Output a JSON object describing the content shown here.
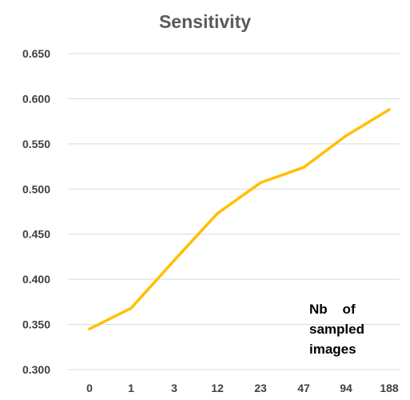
{
  "chart_data": {
    "type": "line",
    "title": "Sensitivity",
    "xlabel": "",
    "ylabel": "",
    "categories": [
      "0",
      "1",
      "3",
      "12",
      "23",
      "47",
      "94",
      "188"
    ],
    "series": [
      {
        "values": [
          0.345,
          0.368,
          0.421,
          0.473,
          0.507,
          0.524,
          0.559,
          0.588
        ],
        "color": "#FFC000"
      }
    ],
    "y_ticks": [
      "0.300",
      "0.350",
      "0.400",
      "0.450",
      "0.500",
      "0.550",
      "0.600",
      "0.650"
    ],
    "ylim": [
      0.3,
      0.65
    ],
    "grid": true,
    "gridline_color": "#D9D9D9",
    "annotation": "Nb    of\nsampled\nimages"
  }
}
